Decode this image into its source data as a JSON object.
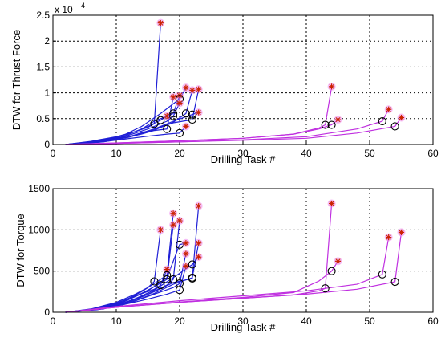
{
  "chart_data": [
    {
      "type": "line",
      "xlabel": "Drilling Task #",
      "ylabel": "DTW for Thrust Force",
      "multiplier": "x 10",
      "multiplier_exp": "4",
      "xlim": [
        0,
        60
      ],
      "ylim": [
        0,
        2.5
      ],
      "xticks": [
        "0",
        "10",
        "20",
        "30",
        "40",
        "50",
        "60"
      ],
      "yticks": [
        "0",
        "0.5",
        "1",
        "1.5",
        "2",
        "2.5"
      ],
      "grid": true,
      "series": [
        {
          "color": "#1f1fd6",
          "x": [
            2,
            6,
            10,
            13,
            15,
            16,
            17
          ],
          "y": [
            0,
            0.06,
            0.15,
            0.25,
            0.33,
            0.4,
            2.35
          ],
          "circle": [
            16,
            0.4
          ],
          "star": [
            17,
            2.35
          ]
        },
        {
          "color": "#1f1fd6",
          "x": [
            2,
            6,
            10,
            13,
            15,
            17,
            18
          ],
          "y": [
            0,
            0.05,
            0.14,
            0.25,
            0.35,
            0.47,
            0.55
          ],
          "circle": [
            17,
            0.47
          ],
          "star": [
            18,
            0.55
          ]
        },
        {
          "color": "#1f1fd6",
          "x": [
            2,
            7,
            11,
            14,
            16,
            18,
            19
          ],
          "y": [
            0,
            0.05,
            0.12,
            0.2,
            0.27,
            0.3,
            0.92
          ],
          "circle": [
            18,
            0.3
          ],
          "star": [
            19,
            0.92
          ]
        },
        {
          "color": "#1f1fd6",
          "x": [
            2,
            7,
            11,
            14,
            16,
            19,
            20
          ],
          "y": [
            0,
            0.06,
            0.15,
            0.3,
            0.45,
            0.6,
            0.95
          ],
          "circle": [
            19,
            0.6
          ],
          "star": [
            20,
            0.95
          ]
        },
        {
          "color": "#1f1fd6",
          "x": [
            2,
            7,
            11,
            14,
            17,
            20,
            21
          ],
          "y": [
            0,
            0.06,
            0.17,
            0.35,
            0.6,
            0.88,
            1.1
          ],
          "circle": [
            20,
            0.88
          ],
          "star": [
            21,
            1.1
          ]
        },
        {
          "color": "#1f1fd6",
          "x": [
            2,
            7,
            11,
            15,
            18,
            19,
            20
          ],
          "y": [
            0,
            0.05,
            0.14,
            0.3,
            0.45,
            0.55,
            0.8
          ],
          "circle": [
            19,
            0.55
          ],
          "star": [
            20,
            0.8
          ]
        },
        {
          "color": "#1f1fd6",
          "x": [
            2,
            7,
            11,
            15,
            18,
            20,
            21
          ],
          "y": [
            0,
            0.04,
            0.1,
            0.16,
            0.2,
            0.22,
            0.35
          ],
          "circle": [
            20,
            0.22
          ],
          "star": [
            21,
            0.35
          ]
        },
        {
          "color": "#1f1fd6",
          "x": [
            2,
            7,
            12,
            16,
            19,
            22,
            23
          ],
          "y": [
            0,
            0.05,
            0.15,
            0.3,
            0.42,
            0.48,
            1.07
          ],
          "circle": [
            22,
            0.48
          ],
          "star": [
            23,
            1.07
          ]
        },
        {
          "color": "#1f1fd6",
          "x": [
            2,
            7,
            12,
            16,
            19,
            22,
            23
          ],
          "y": [
            0,
            0.05,
            0.15,
            0.3,
            0.45,
            0.58,
            0.62
          ],
          "circle": [
            22,
            0.58
          ],
          "star": [
            23,
            0.62
          ]
        },
        {
          "color": "#1f1fd6",
          "x": [
            2,
            8,
            12,
            16,
            19,
            21,
            22
          ],
          "y": [
            0,
            0.05,
            0.14,
            0.28,
            0.43,
            0.6,
            1.05
          ],
          "circle": [
            21,
            0.6
          ],
          "star": [
            22,
            1.05
          ]
        },
        {
          "color": "#c030e0",
          "x": [
            2,
            10,
            20,
            30,
            38,
            42,
            43,
            44
          ],
          "y": [
            0,
            0.03,
            0.07,
            0.12,
            0.2,
            0.32,
            0.38,
            1.12
          ],
          "circle": [
            43,
            0.38
          ],
          "star": [
            44,
            1.12
          ]
        },
        {
          "color": "#c030e0",
          "x": [
            2,
            10,
            20,
            30,
            38,
            42,
            44,
            45
          ],
          "y": [
            0,
            0.03,
            0.07,
            0.12,
            0.2,
            0.3,
            0.38,
            0.48
          ],
          "circle": [
            44,
            0.38
          ],
          "star": [
            45,
            0.48
          ]
        },
        {
          "color": "#c030e0",
          "x": [
            2,
            10,
            20,
            30,
            40,
            48,
            52,
            53
          ],
          "y": [
            0,
            0.02,
            0.05,
            0.09,
            0.15,
            0.3,
            0.45,
            0.68
          ],
          "circle": [
            52,
            0.45
          ],
          "star": [
            53,
            0.68
          ]
        },
        {
          "color": "#c030e0",
          "x": [
            2,
            10,
            20,
            30,
            40,
            48,
            54,
            55
          ],
          "y": [
            0,
            0.02,
            0.05,
            0.08,
            0.12,
            0.22,
            0.35,
            0.52
          ],
          "circle": [
            54,
            0.35
          ],
          "star": [
            55,
            0.52
          ]
        }
      ]
    },
    {
      "type": "line",
      "xlabel": "Drilling Task #",
      "ylabel": "DTW for Torque",
      "xlim": [
        0,
        60
      ],
      "ylim": [
        0,
        1500
      ],
      "xticks": [
        "0",
        "10",
        "20",
        "30",
        "40",
        "50",
        "60"
      ],
      "yticks": [
        "0",
        "500",
        "1000",
        "1500"
      ],
      "grid": true,
      "series": [
        {
          "color": "#1f1fd6",
          "x": [
            2,
            6,
            10,
            13,
            15,
            16,
            17
          ],
          "y": [
            0,
            40,
            120,
            220,
            300,
            375,
            1000
          ],
          "circle": [
            16,
            375
          ],
          "star": [
            17,
            1000
          ]
        },
        {
          "color": "#1f1fd6",
          "x": [
            2,
            6,
            10,
            13,
            16,
            17,
            18
          ],
          "y": [
            0,
            35,
            110,
            200,
            280,
            330,
            520
          ],
          "circle": [
            17,
            330
          ],
          "star": [
            18,
            520
          ]
        },
        {
          "color": "#1f1fd6",
          "x": [
            2,
            7,
            11,
            14,
            16,
            18,
            19
          ],
          "y": [
            0,
            40,
            120,
            230,
            310,
            400,
            1060
          ],
          "circle": [
            18,
            400
          ],
          "star": [
            19,
            1060
          ]
        },
        {
          "color": "#1f1fd6",
          "x": [
            2,
            7,
            11,
            14,
            16,
            18,
            19
          ],
          "y": [
            0,
            45,
            130,
            250,
            350,
            450,
            1200
          ],
          "circle": [
            18,
            450
          ],
          "star": [
            19,
            1200
          ]
        },
        {
          "color": "#1f1fd6",
          "x": [
            2,
            7,
            11,
            15,
            18,
            20,
            21
          ],
          "y": [
            0,
            40,
            120,
            260,
            420,
            820,
            840
          ],
          "circle": [
            20,
            820
          ],
          "star": [
            21,
            840
          ]
        },
        {
          "color": "#1f1fd6",
          "x": [
            2,
            7,
            11,
            15,
            18,
            19,
            20
          ],
          "y": [
            0,
            40,
            110,
            220,
            330,
            400,
            1110
          ],
          "circle": [
            19,
            400
          ],
          "star": [
            20,
            1110
          ]
        },
        {
          "color": "#1f1fd6",
          "x": [
            2,
            7,
            11,
            15,
            18,
            20,
            21
          ],
          "y": [
            0,
            30,
            90,
            160,
            220,
            270,
            560
          ],
          "circle": [
            20,
            270
          ],
          "star": [
            21,
            560
          ]
        },
        {
          "color": "#1f1fd6",
          "x": [
            2,
            7,
            12,
            16,
            19,
            20,
            21
          ],
          "y": [
            0,
            40,
            110,
            220,
            300,
            350,
            710
          ],
          "circle": [
            20,
            350
          ],
          "star": [
            21,
            710
          ]
        },
        {
          "color": "#1f1fd6",
          "x": [
            2,
            7,
            12,
            16,
            19,
            22,
            23
          ],
          "y": [
            0,
            40,
            120,
            250,
            360,
            410,
            1290
          ],
          "circle": [
            22,
            410
          ],
          "star": [
            23,
            1290
          ]
        },
        {
          "color": "#1f1fd6",
          "x": [
            2,
            7,
            12,
            16,
            19,
            22,
            23
          ],
          "y": [
            0,
            35,
            110,
            230,
            340,
            420,
            840
          ],
          "circle": [
            22,
            420
          ],
          "star": [
            23,
            840
          ]
        },
        {
          "color": "#1f1fd6",
          "x": [
            2,
            8,
            12,
            16,
            19,
            22,
            23
          ],
          "y": [
            0,
            40,
            130,
            270,
            420,
            580,
            670
          ],
          "circle": [
            22,
            580
          ],
          "star": [
            23,
            670
          ]
        },
        {
          "color": "#c030e0",
          "x": [
            2,
            10,
            20,
            30,
            38,
            42,
            43,
            44
          ],
          "y": [
            0,
            60,
            120,
            170,
            210,
            260,
            290,
            1320
          ],
          "circle": [
            43,
            290
          ],
          "star": [
            44,
            1320
          ]
        },
        {
          "color": "#c030e0",
          "x": [
            2,
            10,
            20,
            30,
            38,
            42,
            44,
            45
          ],
          "y": [
            0,
            60,
            125,
            180,
            240,
            380,
            500,
            620
          ],
          "circle": [
            44,
            500
          ],
          "star": [
            45,
            620
          ]
        },
        {
          "color": "#c030e0",
          "x": [
            2,
            10,
            20,
            30,
            40,
            48,
            52,
            53
          ],
          "y": [
            0,
            70,
            140,
            200,
            260,
            340,
            460,
            910
          ],
          "circle": [
            52,
            460
          ],
          "star": [
            53,
            910
          ]
        },
        {
          "color": "#c030e0",
          "x": [
            2,
            10,
            20,
            30,
            40,
            48,
            54,
            55
          ],
          "y": [
            0,
            60,
            120,
            170,
            220,
            280,
            370,
            970
          ],
          "circle": [
            54,
            370
          ],
          "star": [
            55,
            970
          ]
        }
      ]
    }
  ]
}
